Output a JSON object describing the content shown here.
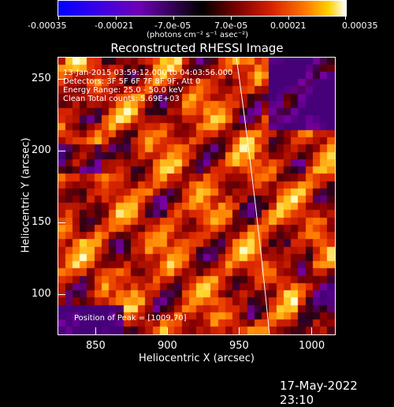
{
  "colorbar": {
    "tick_labels": [
      "-0.00035",
      "-0.00021",
      "-7.0e-05",
      "7.0e-05",
      "0.00021",
      "0.00035"
    ],
    "unit_label": "(photons cm⁻² s⁻¹ asec⁻²)"
  },
  "image": {
    "title": "Reconstructed RHESSI Image",
    "info_lines": [
      "13-Jan-2015 03:59:12.000 to 04:03:56.000",
      "Detectors: 3F 5F 6F 7F 8F 9F, Att 0",
      "Energy Range: 25.0 - 50.0 keV",
      "Clean    Total counts: 5.69E+03"
    ],
    "peak_label": "Position of Peak = [1009,70]"
  },
  "axes": {
    "xlabel": "Heliocentric X (arcsec)",
    "ylabel": "Heliocentric Y (arcsec)",
    "x_ticks": [
      "850",
      "900",
      "950",
      "1000"
    ],
    "y_ticks": [
      "100",
      "150",
      "200",
      "250"
    ],
    "x_range": [
      825,
      1015
    ],
    "y_range": [
      70,
      265
    ]
  },
  "footer": {
    "timestamp": "17-May-2022 23:10"
  }
}
